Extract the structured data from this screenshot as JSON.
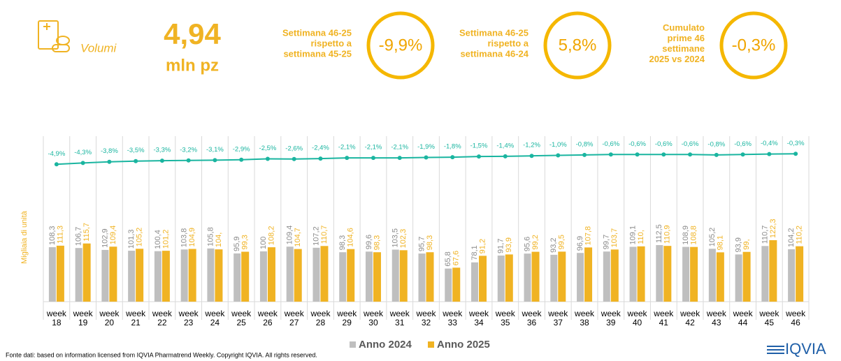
{
  "header": {
    "section": "Volumi",
    "volume": "4,94",
    "volume_unit": "mln pz",
    "kpis": [
      {
        "label": [
          "Settimana 46-25",
          "rispetto a",
          "settimana 45-25"
        ],
        "value": "-9,9%"
      },
      {
        "label": [
          "Settimana 46-25",
          "rispetto a",
          "settimana 46-24"
        ],
        "value": "5,8%"
      },
      {
        "label": [
          "Cumulato",
          "prime 46",
          "settimane",
          "2025 vs 2024"
        ],
        "value": "-0,3%"
      }
    ]
  },
  "chart_data": {
    "type": "bar",
    "y_label": "Migliaia di unità",
    "categories": [
      "week 18",
      "week 19",
      "week 20",
      "week 21",
      "week 22",
      "week 23",
      "week 24",
      "week 25",
      "week 26",
      "week 27",
      "week 28",
      "week 29",
      "week 30",
      "week 31",
      "week 32",
      "week 33",
      "week 34",
      "week 35",
      "week 36",
      "week 37",
      "week 38",
      "week 39",
      "week 40",
      "week 41",
      "week 42",
      "week 43",
      "week 44",
      "week 45",
      "week 46"
    ],
    "ylim": [
      0,
      300
    ],
    "y2lim": [
      -65,
      1
    ],
    "series": [
      {
        "name": "Anno 2024",
        "color": "#bfbfbf",
        "values": [
          108.3,
          106.7,
          102.9,
          101.3,
          100.4,
          103.8,
          105.8,
          95.9,
          100,
          109.4,
          107.2,
          98.3,
          99.6,
          103.5,
          95.7,
          65.8,
          78.1,
          91.7,
          95.6,
          93.2,
          96.9,
          99.7,
          109.1,
          112.5,
          108.9,
          105.2,
          93.9,
          110.7,
          104.2
        ],
        "value_labels": [
          "108,3",
          "106,7",
          "102,9",
          "101,3",
          "100,4",
          "103,8",
          "105,8",
          "95,9",
          "100",
          "109,4",
          "107,2",
          "98,3",
          "99,6",
          "103,5",
          "95,7",
          "65,8",
          "78,1",
          "91,7",
          "95,6",
          "93,2",
          "96,9",
          "99,7",
          "109,1",
          "112,5",
          "108,9",
          "105,2",
          "93,9",
          "110,7",
          "104,2"
        ]
      },
      {
        "name": "Anno 2025",
        "color": "#f0b323",
        "values": [
          111.3,
          115.7,
          109.4,
          105.2,
          101.2,
          104.9,
          104.0,
          99.3,
          108.2,
          104.7,
          110.7,
          104.6,
          98.3,
          102.3,
          98.3,
          67.6,
          91.2,
          93.9,
          99.2,
          99.5,
          107.8,
          103.7,
          110.0,
          110.9,
          108.8,
          98.1,
          99.0,
          122.3,
          110.2
        ],
        "value_labels": [
          "111,3",
          "115,7",
          "109,4",
          "105,2",
          "101,2",
          "104,9",
          "104,",
          "99,3",
          "108,2",
          "104,7",
          "110,7",
          "104,6",
          "98,3",
          "102,3",
          "98,3",
          "67,6",
          "91,2",
          "93,9",
          "99,2",
          "99,5",
          "107,8",
          "103,7",
          "110,",
          "110,9",
          "108,8",
          "98,1",
          "99,",
          "122,3",
          "110,2"
        ]
      },
      {
        "type": "line",
        "axis": "y2",
        "color": "#1ab5a0",
        "values": [
          -4.9,
          -4.3,
          -3.8,
          -3.5,
          -3.3,
          -3.2,
          -3.1,
          -2.9,
          -2.5,
          -2.6,
          -2.4,
          -2.1,
          -2.1,
          -2.1,
          -1.9,
          -1.8,
          -1.5,
          -1.4,
          -1.2,
          -1.0,
          -0.8,
          -0.6,
          -0.6,
          -0.6,
          -0.6,
          -0.8,
          -0.6,
          -0.4,
          -0.3
        ],
        "value_labels": [
          "-4,9%",
          "-4,3%",
          "-3,8%",
          "-3,5%",
          "-3,3%",
          "-3,2%",
          "-3,1%",
          "-2,9%",
          "-2,5%",
          "-2,6%",
          "-2,4%",
          "-2,1%",
          "-2,1%",
          "-2,1%",
          "-1,9%",
          "-1,8%",
          "-1,5%",
          "-1,4%",
          "-1,2%",
          "-1,0%",
          "-0,8%",
          "-0,6%",
          "-0,6%",
          "-0,6%",
          "-0,6%",
          "-0,8%",
          "-0,6%",
          "-0,4%",
          "-0,3%"
        ]
      }
    ]
  },
  "footer": {
    "source": "Fonte dati: based on information licensed from IQVIA Pharmatrend Weekly. Copyright IQVIA. All rights reserved.",
    "brand": "IQVIA"
  }
}
